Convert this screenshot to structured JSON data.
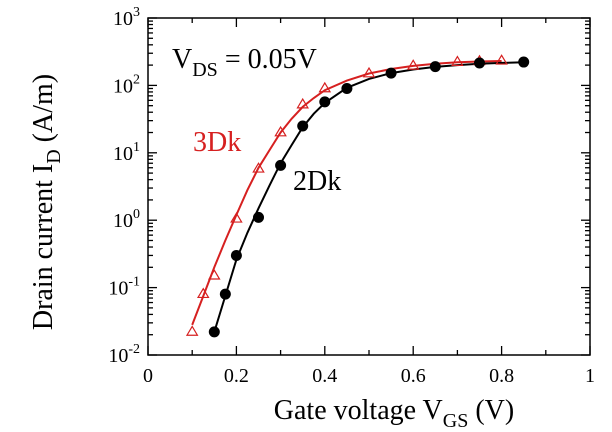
{
  "chart_data": {
    "type": "line",
    "xlabel": {
      "main": "Gate voltage V",
      "sub": "GS",
      "unit": " (V)"
    },
    "ylabel": {
      "main": "Drain current I",
      "sub": "D",
      "unit": " (A/m)"
    },
    "xlim": [
      0,
      1
    ],
    "ylim": [
      0.01,
      1000
    ],
    "y_scale": "log",
    "x_ticks": [
      0,
      0.2,
      0.4,
      0.6,
      0.8,
      1
    ],
    "x_tick_labels": [
      "0",
      "0.2",
      "0.4",
      "0.6",
      "0.8",
      "1"
    ],
    "y_ticks": [
      {
        "value": 0.01,
        "base": "10",
        "exp": "-2"
      },
      {
        "value": 0.1,
        "base": "10",
        "exp": "-1"
      },
      {
        "value": 1,
        "base": "10",
        "exp": "0"
      },
      {
        "value": 10,
        "base": "10",
        "exp": "1"
      },
      {
        "value": 100,
        "base": "10",
        "exp": "2"
      },
      {
        "value": 1000,
        "base": "10",
        "exp": "3"
      }
    ],
    "grid": false,
    "annotation": {
      "main": "V",
      "sub": "DS",
      "rest": " = 0.05V"
    },
    "series": [
      {
        "name": "3Dk",
        "color": "#d62020",
        "marker": "open-triangle",
        "points": [
          [
            0.1,
            0.022
          ],
          [
            0.125,
            0.08
          ],
          [
            0.15,
            0.15
          ],
          [
            0.2,
            1.05
          ],
          [
            0.25,
            5.8
          ],
          [
            0.3,
            20
          ],
          [
            0.35,
            52
          ],
          [
            0.4,
            90
          ],
          [
            0.5,
            150
          ],
          [
            0.6,
            195
          ],
          [
            0.7,
            222
          ],
          [
            0.75,
            228
          ],
          [
            0.8,
            232
          ]
        ],
        "curve": [
          [
            0.1,
            0.028
          ],
          [
            0.125,
            0.075
          ],
          [
            0.15,
            0.2
          ],
          [
            0.175,
            0.5
          ],
          [
            0.2,
            1.2
          ],
          [
            0.225,
            2.8
          ],
          [
            0.25,
            6.0
          ],
          [
            0.275,
            11
          ],
          [
            0.3,
            20
          ],
          [
            0.325,
            32
          ],
          [
            0.35,
            48
          ],
          [
            0.375,
            65
          ],
          [
            0.4,
            85
          ],
          [
            0.45,
            118
          ],
          [
            0.5,
            150
          ],
          [
            0.55,
            175
          ],
          [
            0.6,
            195
          ],
          [
            0.65,
            210
          ],
          [
            0.7,
            220
          ],
          [
            0.75,
            226
          ],
          [
            0.8,
            230
          ]
        ]
      },
      {
        "name": "2Dk",
        "color": "#000000",
        "marker": "filled-circle",
        "points": [
          [
            0.15,
            0.022
          ],
          [
            0.175,
            0.08
          ],
          [
            0.2,
            0.3
          ],
          [
            0.25,
            1.1
          ],
          [
            0.3,
            6.5
          ],
          [
            0.35,
            25
          ],
          [
            0.4,
            57
          ],
          [
            0.45,
            90
          ],
          [
            0.55,
            152
          ],
          [
            0.65,
            190
          ],
          [
            0.75,
            215
          ],
          [
            0.85,
            222
          ]
        ],
        "curve": [
          [
            0.15,
            0.022
          ],
          [
            0.175,
            0.075
          ],
          [
            0.2,
            0.26
          ],
          [
            0.225,
            0.65
          ],
          [
            0.25,
            1.5
          ],
          [
            0.275,
            3.3
          ],
          [
            0.3,
            7.0
          ],
          [
            0.325,
            13
          ],
          [
            0.35,
            24
          ],
          [
            0.375,
            38
          ],
          [
            0.4,
            55
          ],
          [
            0.45,
            92
          ],
          [
            0.5,
            125
          ],
          [
            0.55,
            152
          ],
          [
            0.6,
            172
          ],
          [
            0.65,
            188
          ],
          [
            0.7,
            200
          ],
          [
            0.75,
            210
          ],
          [
            0.8,
            216
          ],
          [
            0.85,
            220
          ]
        ]
      }
    ]
  }
}
